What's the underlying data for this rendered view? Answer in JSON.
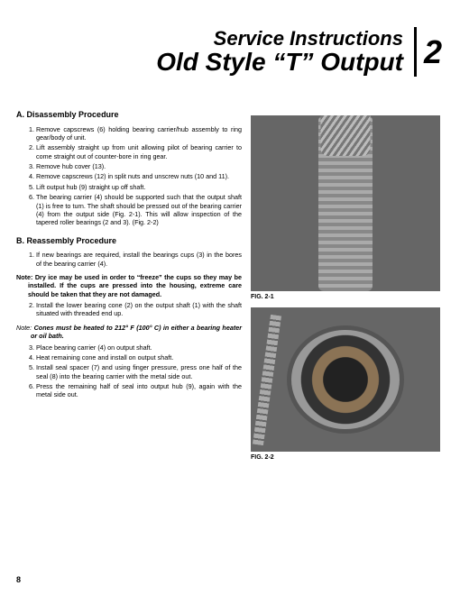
{
  "header": {
    "title": "Service Instructions",
    "subtitle": "Old Style “T” Output",
    "section_number": "2"
  },
  "sections": {
    "a": {
      "label": "A.",
      "heading": "Disassembly Procedure",
      "steps": [
        "Remove capscrews (6) holding bearing carrier/hub assembly to ring gear/body of unit.",
        "Lift assembly straight up from unit allowing pilot of bearing carrier to come straight out of counter-bore in ring gear.",
        "Remove hub cover (13).",
        "Remove capscrews (12) in split nuts and unscrew nuts (10 and 11).",
        "Lift output hub (9) straight up off shaft.",
        "The bearing carrier (4) should be supported such that the output shaft (1) is free to turn. The shaft should be pressed out of the bearing carrier (4) from the output side (Fig. 2-1). This will allow inspection of the tapered roller bearings (2 and 3). (Fig. 2-2)"
      ]
    },
    "b": {
      "label": "B.",
      "heading": "Reassembly Procedure",
      "steps_part1": [
        "If new bearings are required, install the bearings cups (3) in the bores of the bearing carrier (4)."
      ],
      "note1": "Note: Dry ice may be used in order to “freeze” the cups so they may be installed. If the cups are pressed into the housing, extreme care should be taken that they are not damaged.",
      "steps_part2": [
        "Install the lower bearing cone (2) on the output shaft (1) with the shaft situated with threaded end up."
      ],
      "note2_lead": "Note:",
      "note2_body": "Cones must be heated to 212° F (100° C) in either a bearing heater or oil bath.",
      "steps_part3": [
        "Place bearing carrier (4) on output shaft.",
        "Heat remaining cone and install on output shaft.",
        "Install seal spacer (7) and using finger pressure, press one half of the seal (8) into the bearing carrier with the metal side out.",
        "Press the remaining half of seal into output hub (9), again with the metal side out."
      ]
    }
  },
  "figures": {
    "fig1_caption": "FIG. 2-1",
    "fig2_caption": "FIG. 2-2"
  },
  "page_number": "8"
}
